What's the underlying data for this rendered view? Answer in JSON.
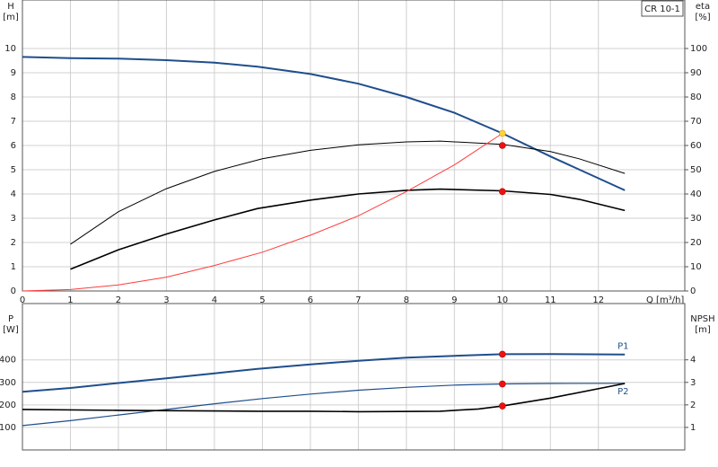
{
  "chart_data": [
    {
      "type": "line",
      "title": "CR 10-1",
      "xlabel": "Q [m³/h]",
      "ylabel": [
        "H",
        "[m]"
      ],
      "y2label": [
        "eta",
        "[%]"
      ],
      "xlim": [
        0,
        13.8
      ],
      "xticks": [
        0,
        1,
        2,
        3,
        4,
        5,
        6,
        7,
        8,
        9,
        10,
        11,
        12
      ],
      "ylim": [
        0,
        12
      ],
      "yticks": [
        0,
        1,
        2,
        3,
        4,
        5,
        6,
        7,
        8,
        9,
        10
      ],
      "y2lim": [
        0,
        120
      ],
      "y2ticks": [
        0,
        10,
        20,
        30,
        40,
        50,
        60,
        70,
        80,
        90,
        100
      ],
      "grid": true,
      "series": [
        {
          "color": "#1f4e8c",
          "width": 2,
          "x": [
            0,
            1,
            2,
            3,
            4,
            4.9,
            6,
            7,
            8,
            9,
            10,
            11,
            12.55
          ],
          "values": [
            9.65,
            9.6,
            9.58,
            9.52,
            9.42,
            9.25,
            8.95,
            8.55,
            8.0,
            7.35,
            6.5,
            5.55,
            4.15
          ]
        },
        {
          "color": "#000000",
          "width": 1,
          "axis": "y2",
          "x": [
            1,
            2,
            3,
            4,
            5,
            6,
            7,
            8,
            8.7,
            10,
            11,
            11.6,
            12.55
          ],
          "values": [
            19.3,
            32.7,
            42.2,
            49.3,
            54.5,
            58,
            60.3,
            61.5,
            61.8,
            60.5,
            57.5,
            54.5,
            48.5
          ]
        },
        {
          "color": "#000000",
          "width": 1.6,
          "axis": "y2",
          "x": [
            1,
            2,
            3,
            4,
            4.9,
            6,
            7,
            8,
            8.7,
            10,
            11,
            11.6,
            12.55
          ],
          "values": [
            9,
            17,
            23.5,
            29.3,
            34,
            37.5,
            40,
            41.5,
            42,
            41.3,
            39.8,
            37.8,
            33.2
          ]
        },
        {
          "color": "#ff3b3b",
          "width": 1,
          "x": [
            0,
            1,
            2,
            3,
            4,
            5,
            6,
            7,
            8,
            9,
            10
          ],
          "values": [
            0,
            0.06,
            0.25,
            0.57,
            1.05,
            1.6,
            2.3,
            3.1,
            4.1,
            5.2,
            6.5
          ]
        }
      ],
      "markers": [
        {
          "x": 10,
          "y": 6.5,
          "color": "#ffd23f"
        },
        {
          "x": 10,
          "y": 60,
          "color": "#ee1111",
          "axis": "y2"
        },
        {
          "x": 10,
          "y": 41,
          "color": "#ee1111",
          "axis": "y2"
        }
      ]
    },
    {
      "type": "line",
      "ylabel": [
        "P",
        "[W]"
      ],
      "y2label": [
        "NPSH",
        "[m]"
      ],
      "xlim": [
        0,
        13.8
      ],
      "ylim": [
        0,
        650
      ],
      "yticks": [
        100,
        200,
        300,
        400
      ],
      "y2lim": [
        0,
        6.5
      ],
      "y2ticks": [
        1,
        2,
        3,
        4
      ],
      "grid": true,
      "series": [
        {
          "name": "P1",
          "color": "#1f4e8c",
          "width": 2,
          "x": [
            0,
            1,
            2,
            3,
            4,
            4.9,
            6,
            7,
            8,
            9,
            10,
            11,
            12.55
          ],
          "values": [
            258,
            275,
            297,
            318,
            340,
            360,
            380,
            396,
            410,
            418,
            425,
            426,
            424
          ]
        },
        {
          "name": "P2",
          "color": "#1f4e8c",
          "width": 1.2,
          "x": [
            0,
            1,
            2,
            3,
            4,
            5,
            6,
            7,
            8,
            9,
            10,
            11,
            12.55
          ],
          "values": [
            108,
            130,
            155,
            180,
            205,
            228,
            248,
            265,
            278,
            288,
            293,
            295,
            296
          ]
        },
        {
          "color": "#000000",
          "width": 1.6,
          "axis": "y2",
          "x": [
            0,
            2,
            4.9,
            6,
            7,
            8.7,
            9.5,
            10,
            11,
            12.55
          ],
          "values": [
            1.8,
            1.76,
            1.72,
            1.72,
            1.7,
            1.72,
            1.82,
            1.95,
            2.3,
            2.95
          ]
        }
      ],
      "markers": [
        {
          "x": 10,
          "y": 425,
          "color": "#ee1111"
        },
        {
          "x": 10,
          "y": 293,
          "color": "#ee1111"
        },
        {
          "x": 10,
          "y": 1.95,
          "color": "#ee1111",
          "axis": "y2"
        }
      ]
    }
  ]
}
